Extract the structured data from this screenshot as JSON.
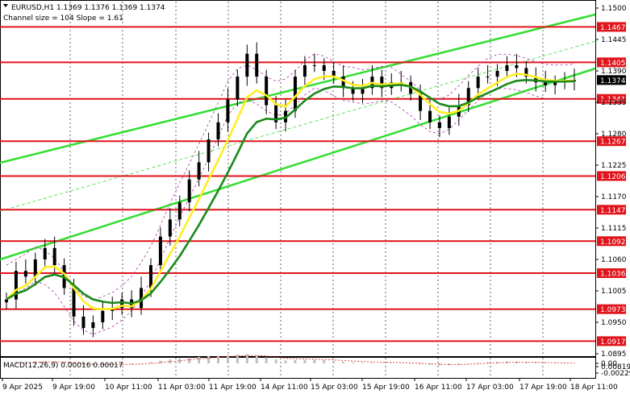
{
  "header": {
    "symbol_line": "EURUSD,H1  1.1369 1.1376 1.1369 1.1374",
    "channel_line": "Channel size = 104 Slope = 1.61"
  },
  "levels": [
    {
      "label": "1.1467",
      "price": 1.1467
    },
    {
      "label": "1.1405",
      "price": 1.1405
    },
    {
      "label": "1.1341",
      "price": 1.1341
    },
    {
      "label": "1.1267",
      "price": 1.1267
    },
    {
      "label": "1.1206",
      "price": 1.1206
    },
    {
      "label": "1.1147",
      "price": 1.1147
    },
    {
      "label": "1.1092",
      "price": 1.1092
    },
    {
      "label": "1.1036",
      "price": 1.1036
    },
    {
      "label": "1.0973",
      "price": 1.0973
    },
    {
      "label": "1.0917",
      "price": 1.0917
    }
  ],
  "current_price": {
    "label": "1.1374",
    "price": 1.1374
  },
  "price_axis": {
    "ticks": [
      {
        "label": "1.1500",
        "price": 1.15
      },
      {
        "label": "1.1445",
        "price": 1.1445
      },
      {
        "label": "1.1390",
        "price": 1.139
      },
      {
        "label": "1.1335",
        "price": 1.1335
      },
      {
        "label": "1.1280",
        "price": 1.128
      },
      {
        "label": "1.1225",
        "price": 1.1225
      },
      {
        "label": "1.1170",
        "price": 1.117
      },
      {
        "label": "1.1115",
        "price": 1.1115
      },
      {
        "label": "1.1060",
        "price": 1.106
      },
      {
        "label": "1.1005",
        "price": 1.1005
      },
      {
        "label": "1.0950",
        "price": 1.095
      },
      {
        "label": "1.0895",
        "price": 1.0895
      }
    ]
  },
  "macd": {
    "title": "MACD(12,26,9) 0.00016 0.00017",
    "ticks": [
      {
        "label": "0.00819",
        "value": 0.00819
      },
      {
        "label": "0.00",
        "value": 0.0
      },
      {
        "label": "-0.00229",
        "value": -0.00229
      }
    ]
  },
  "time_axis": {
    "labels": [
      "9 Apr 2025",
      "9 Apr 19:00",
      "10 Apr 11:00",
      "11 Apr 03:00",
      "11 Apr 19:00",
      "14 Apr 11:00",
      "15 Apr 03:00",
      "15 Apr 19:00",
      "16 Apr 11:00",
      "17 Apr 03:00",
      "17 Apr 19:00",
      "18 Apr 11:00"
    ]
  },
  "colors": {
    "level_line": "#e0141c",
    "channel": "#33dd33",
    "ma_fast": "#ffee22",
    "ma_slow": "#1a8a1a",
    "envelope": "#aa33aa",
    "candle": "#000000",
    "macd_hist": "#c0c0c0",
    "macd_signal": "#e02020",
    "grid": "#000000"
  },
  "chart_data": {
    "type": "line",
    "title": "EURUSD,H1",
    "note": "Hourly candlestick price chart with moving averages, channel and MACD sub-window; close values sampled from the picture.",
    "ylim": [
      1.088,
      1.151
    ],
    "series": [
      {
        "name": "EURUSD,H1",
        "values": [
          1.099,
          1.104,
          1.103,
          1.106,
          1.108,
          1.105,
          1.101,
          1.096,
          1.094,
          1.095,
          1.097,
          1.0975,
          1.099,
          1.0975,
          1.101,
          1.105,
          1.11,
          1.113,
          1.116,
          1.12,
          1.123,
          1.127,
          1.13,
          1.134,
          1.138,
          1.142,
          1.138,
          1.133,
          1.13,
          1.132,
          1.138,
          1.14,
          1.14,
          1.139,
          1.138,
          1.136,
          1.135,
          1.136,
          1.138,
          1.136,
          1.137,
          1.137,
          1.135,
          1.132,
          1.13,
          1.129,
          1.131,
          1.133,
          1.136,
          1.138,
          1.138,
          1.139,
          1.14,
          1.1395,
          1.138,
          1.137,
          1.1365,
          1.137,
          1.1372,
          1.1374
        ]
      }
    ]
  }
}
